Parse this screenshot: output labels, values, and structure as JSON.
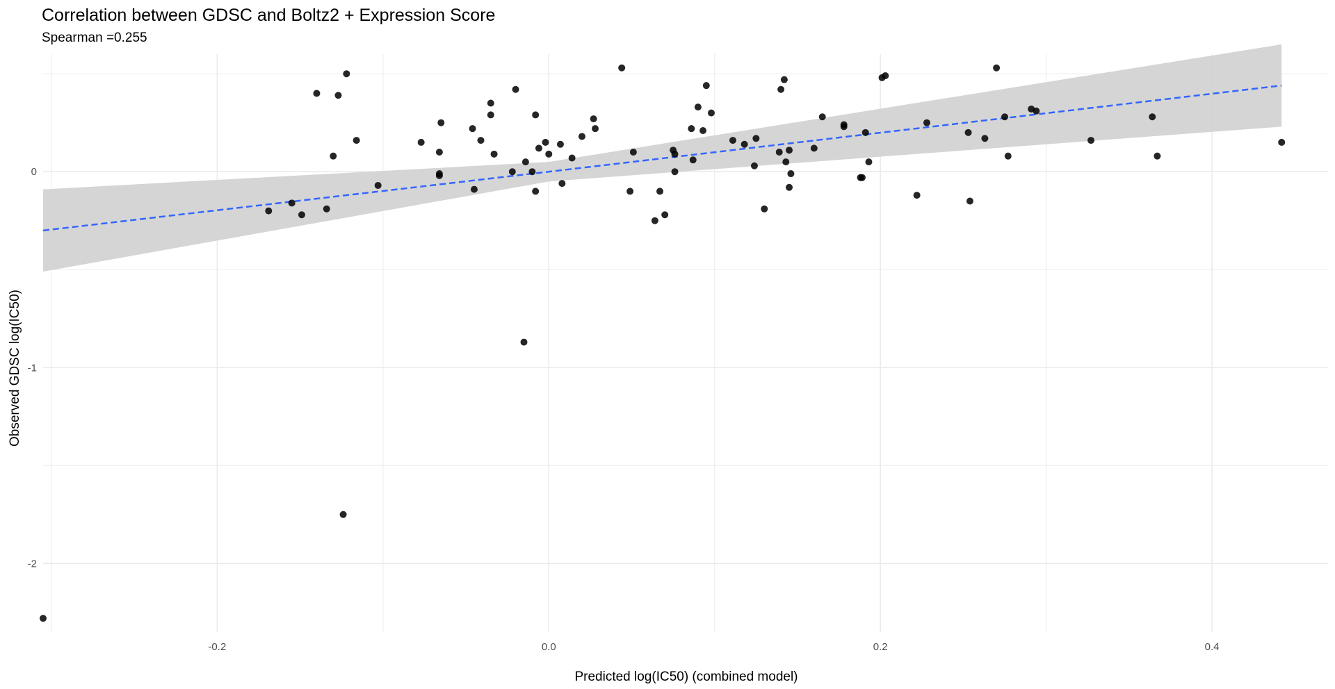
{
  "chart_data": {
    "type": "scatter",
    "title": "Correlation between GDSC and Boltz2 + Expression Score",
    "subtitle": "Spearman =0.255",
    "xlabel": "Predicted log(IC50) (combined model)",
    "ylabel": "Observed GDSC log(IC50)",
    "xlim": [
      -0.305,
      0.47
    ],
    "ylim": [
      -2.35,
      0.6
    ],
    "x_ticks": [
      -0.2,
      0.0,
      0.2,
      0.4
    ],
    "x_tick_labels": [
      "-0.2",
      "0.0",
      "0.2",
      "0.4"
    ],
    "y_ticks": [
      -2,
      -1,
      0
    ],
    "y_tick_labels": [
      "-2",
      "-1",
      "0"
    ],
    "grid": true,
    "colors": {
      "points": "#000000",
      "fit_line": "#3366FF",
      "ribbon": "#d3d3d3",
      "grid": "#ebebeb"
    },
    "fit": {
      "type": "linear",
      "x": [
        -0.305,
        0.0,
        0.442
      ],
      "y": [
        -0.3,
        0.0,
        0.44
      ],
      "lower": [
        -0.51,
        -0.05,
        0.23
      ],
      "upper": [
        -0.09,
        0.05,
        0.65
      ]
    },
    "points": [
      [
        -0.305,
        -2.28
      ],
      [
        -0.124,
        -1.75
      ],
      [
        -0.015,
        -0.87
      ],
      [
        -0.169,
        -0.2
      ],
      [
        -0.155,
        -0.16
      ],
      [
        -0.149,
        -0.22
      ],
      [
        -0.134,
        -0.19
      ],
      [
        -0.103,
        -0.07
      ],
      [
        -0.14,
        0.4
      ],
      [
        -0.127,
        0.39
      ],
      [
        -0.122,
        0.5
      ],
      [
        -0.13,
        0.08
      ],
      [
        -0.116,
        0.16
      ],
      [
        -0.077,
        0.15
      ],
      [
        -0.066,
        0.1
      ],
      [
        -0.065,
        0.25
      ],
      [
        -0.066,
        -0.01
      ],
      [
        -0.066,
        -0.02
      ],
      [
        -0.046,
        0.22
      ],
      [
        -0.041,
        0.16
      ],
      [
        -0.035,
        0.35
      ],
      [
        -0.035,
        0.29
      ],
      [
        -0.033,
        0.09
      ],
      [
        -0.045,
        -0.09
      ],
      [
        -0.022,
        0.0
      ],
      [
        -0.02,
        0.42
      ],
      [
        -0.014,
        0.05
      ],
      [
        -0.01,
        0.0
      ],
      [
        -0.008,
        0.29
      ],
      [
        -0.006,
        0.12
      ],
      [
        -0.002,
        0.15
      ],
      [
        0.0,
        0.09
      ],
      [
        -0.008,
        -0.1
      ],
      [
        0.007,
        0.14
      ],
      [
        0.008,
        -0.06
      ],
      [
        0.014,
        0.07
      ],
      [
        0.02,
        0.18
      ],
      [
        0.027,
        0.27
      ],
      [
        0.028,
        0.22
      ],
      [
        0.044,
        0.53
      ],
      [
        0.049,
        -0.1
      ],
      [
        0.051,
        0.1
      ],
      [
        0.064,
        -0.25
      ],
      [
        0.067,
        -0.1
      ],
      [
        0.07,
        -0.22
      ],
      [
        0.075,
        0.11
      ],
      [
        0.076,
        0.09
      ],
      [
        0.076,
        0.0
      ],
      [
        0.086,
        0.22
      ],
      [
        0.087,
        0.06
      ],
      [
        0.09,
        0.33
      ],
      [
        0.093,
        0.21
      ],
      [
        0.095,
        0.44
      ],
      [
        0.098,
        0.3
      ],
      [
        0.111,
        0.16
      ],
      [
        0.118,
        0.14
      ],
      [
        0.124,
        0.03
      ],
      [
        0.125,
        0.17
      ],
      [
        0.13,
        -0.19
      ],
      [
        0.139,
        0.1
      ],
      [
        0.14,
        0.42
      ],
      [
        0.142,
        0.47
      ],
      [
        0.143,
        0.05
      ],
      [
        0.145,
        0.11
      ],
      [
        0.145,
        -0.08
      ],
      [
        0.146,
        -0.01
      ],
      [
        0.16,
        0.12
      ],
      [
        0.165,
        0.28
      ],
      [
        0.178,
        0.23
      ],
      [
        0.178,
        0.24
      ],
      [
        0.188,
        -0.03
      ],
      [
        0.189,
        -0.03
      ],
      [
        0.191,
        0.2
      ],
      [
        0.193,
        0.05
      ],
      [
        0.201,
        0.48
      ],
      [
        0.203,
        0.49
      ],
      [
        0.222,
        -0.12
      ],
      [
        0.228,
        0.25
      ],
      [
        0.253,
        0.2
      ],
      [
        0.254,
        -0.15
      ],
      [
        0.263,
        0.17
      ],
      [
        0.27,
        0.53
      ],
      [
        0.275,
        0.28
      ],
      [
        0.277,
        0.08
      ],
      [
        0.291,
        0.32
      ],
      [
        0.294,
        0.31
      ],
      [
        0.327,
        0.16
      ],
      [
        0.364,
        0.28
      ],
      [
        0.367,
        0.08
      ],
      [
        0.442,
        0.15
      ]
    ]
  }
}
